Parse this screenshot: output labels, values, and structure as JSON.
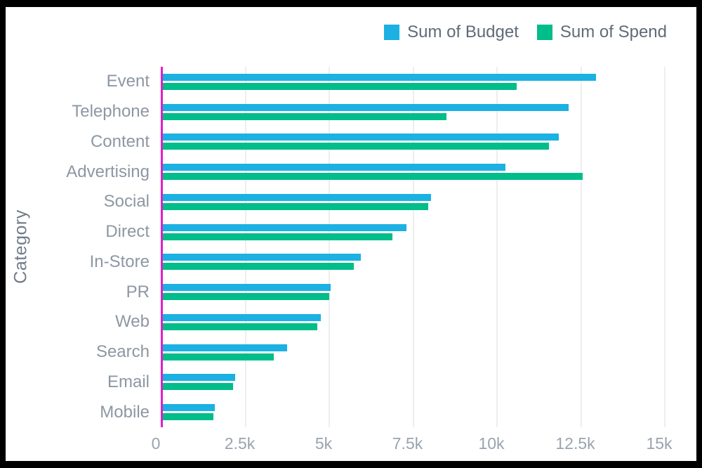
{
  "colors": {
    "budget": "#1bb1e2",
    "spend": "#00bd8a",
    "axis_line": "#e31fc6",
    "gridline": "#eceeef",
    "frame": "#000000",
    "background": "#ffffff"
  },
  "y_axis_title": "Category",
  "chart_data": {
    "type": "bar",
    "orientation": "horizontal",
    "title": "",
    "ylabel": "Category",
    "xlabel": "",
    "xlim": [
      0,
      15000
    ],
    "grid": "vertical",
    "legend_position": "top-right",
    "categories": [
      "Event",
      "Telephone",
      "Content",
      "Advertising",
      "Social",
      "Direct",
      "In-Store",
      "PR",
      "Web",
      "Search",
      "Email",
      "Mobile"
    ],
    "series": [
      {
        "name": "Sum of Budget",
        "color": "#1bb1e2",
        "values": [
          12900,
          12100,
          11800,
          10200,
          8000,
          7250,
          5900,
          5000,
          4700,
          3700,
          2150,
          1550
        ]
      },
      {
        "name": "Sum of Spend",
        "color": "#00bd8a",
        "values": [
          10550,
          8450,
          11500,
          12500,
          7900,
          6850,
          5700,
          4950,
          4600,
          3300,
          2100,
          1500
        ]
      }
    ],
    "x_ticks": [
      {
        "label": "0",
        "value": 0
      },
      {
        "label": "2.5k",
        "value": 2500
      },
      {
        "label": "5k",
        "value": 5000
      },
      {
        "label": "7.5k",
        "value": 7500
      },
      {
        "label": "10k",
        "value": 10000
      },
      {
        "label": "12.5k",
        "value": 12500
      },
      {
        "label": "15k",
        "value": 15000
      }
    ]
  }
}
